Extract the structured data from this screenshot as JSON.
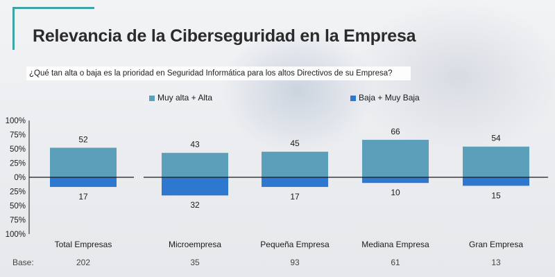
{
  "header": {
    "title": "Relevancia de la Ciberseguridad en la Empresa",
    "question": "¿Qué tan alta o baja es la prioridad en Seguridad Informática para los altos Directivos de su Empresa?"
  },
  "colors": {
    "accent": "#3fa4a8",
    "high": "#5b9fbb",
    "low": "#2e78cf"
  },
  "chart_data": {
    "type": "bar",
    "categories": [
      "Total Empresas",
      "Microempresa",
      "Pequeña Empresa",
      "Mediana Empresa",
      "Gran Empresa"
    ],
    "series": [
      {
        "name": "Muy alta  + Alta",
        "values": [
          52,
          43,
          45,
          66,
          54
        ],
        "direction": "up"
      },
      {
        "name": "Baja + Muy Baja",
        "values": [
          17,
          32,
          17,
          10,
          15
        ],
        "direction": "down"
      }
    ],
    "y_ticks": [
      "100%",
      "75%",
      "50%",
      "25%",
      "0%",
      "25%",
      "50%",
      "75%",
      "100%"
    ],
    "ylim": [
      -100,
      100
    ],
    "legend_position": "top",
    "base_label": "Base:",
    "base_values": [
      "202",
      "35",
      "93",
      "61",
      "13"
    ]
  }
}
